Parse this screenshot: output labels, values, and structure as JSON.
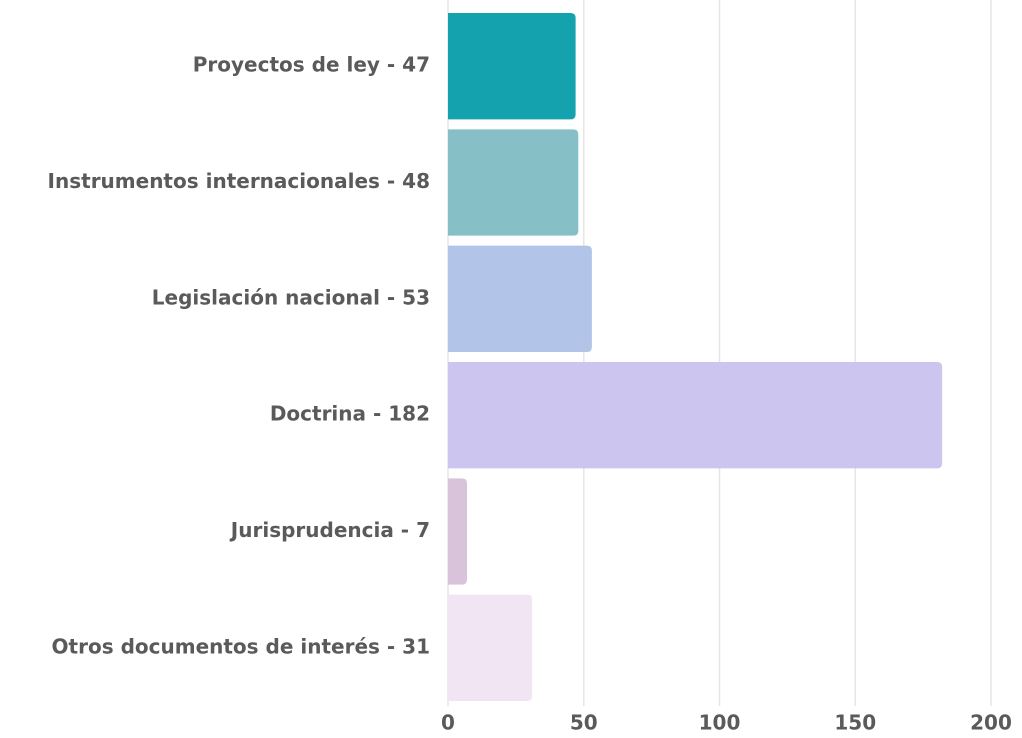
{
  "chart_data": {
    "type": "bar",
    "orientation": "horizontal",
    "categories": [
      "Proyectos de ley - 47",
      "Instrumentos internacionales - 48",
      "Legislación nacional - 53",
      "Doctrina - 182",
      "Jurisprudencia - 7",
      "Otros documentos de interés - 31"
    ],
    "values": [
      47,
      48,
      53,
      182,
      7,
      31
    ],
    "colors": [
      "#13a2ae",
      "#86bfc6",
      "#b2c5e8",
      "#cbc5f0",
      "#d9c3da",
      "#f1e4f3"
    ],
    "xlim": [
      0,
      200
    ],
    "xticks": [
      0,
      50,
      100,
      150,
      200
    ],
    "grid": true
  }
}
